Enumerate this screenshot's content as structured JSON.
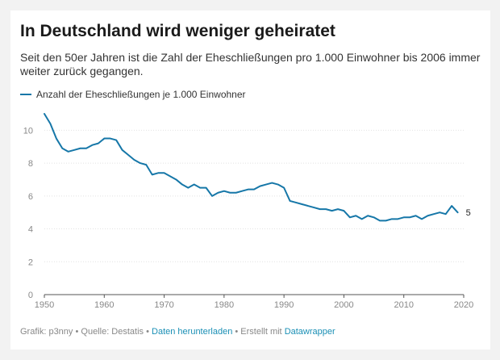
{
  "title": "In Deutschland wird weniger geheiratet",
  "subtitle": "Seit den 50er Jahren ist die Zahl der Eheschließungen pro 1.000 Einwohner bis 2006 immer weiter zurück gegangen.",
  "footer": {
    "credit": "Grafik: p3nny",
    "sep1": " • ",
    "source": "Quelle: Destatis",
    "sep2": " • ",
    "download_link": "Daten herunterladen",
    "sep3": " • ",
    "made_with": "Erstellt mit ",
    "tool_link": "Datawrapper"
  },
  "colors": {
    "line": "#1677a8",
    "background": "#f2f2f2",
    "link": "#1a8fb5"
  },
  "chart_data": {
    "type": "line",
    "title": "In Deutschland wird weniger geheiratet",
    "xlabel": "",
    "ylabel": "",
    "xlim": [
      1950,
      2020
    ],
    "ylim": [
      0,
      11
    ],
    "x_ticks": [
      "1950",
      "1960",
      "1970",
      "1980",
      "1990",
      "2000",
      "2010",
      "2020"
    ],
    "y_ticks": [
      "0",
      "2",
      "4",
      "6",
      "8",
      "10"
    ],
    "grid": "horizontal",
    "legend_position": "top-left",
    "end_label": "5",
    "series": [
      {
        "name": "Anzahl der Eheschließungen je 1.000 Einwohner",
        "x": [
          1950,
          1951,
          1952,
          1953,
          1954,
          1955,
          1956,
          1957,
          1958,
          1959,
          1960,
          1961,
          1962,
          1963,
          1964,
          1965,
          1966,
          1967,
          1968,
          1969,
          1970,
          1971,
          1972,
          1973,
          1974,
          1975,
          1976,
          1977,
          1978,
          1979,
          1980,
          1981,
          1982,
          1983,
          1984,
          1985,
          1986,
          1987,
          1988,
          1989,
          1990,
          1991,
          1992,
          1993,
          1994,
          1995,
          1996,
          1997,
          1998,
          1999,
          2000,
          2001,
          2002,
          2003,
          2004,
          2005,
          2006,
          2007,
          2008,
          2009,
          2010,
          2011,
          2012,
          2013,
          2014,
          2015,
          2016,
          2017,
          2018,
          2019
        ],
        "y": [
          11.0,
          10.4,
          9.5,
          8.9,
          8.7,
          8.8,
          8.9,
          8.9,
          9.1,
          9.2,
          9.5,
          9.5,
          9.4,
          8.8,
          8.5,
          8.2,
          8.0,
          7.9,
          7.3,
          7.4,
          7.4,
          7.2,
          7.0,
          6.7,
          6.5,
          6.7,
          6.5,
          6.5,
          6.0,
          6.2,
          6.3,
          6.2,
          6.2,
          6.3,
          6.4,
          6.4,
          6.6,
          6.7,
          6.8,
          6.7,
          6.5,
          5.7,
          5.6,
          5.5,
          5.4,
          5.3,
          5.2,
          5.2,
          5.1,
          5.2,
          5.1,
          4.7,
          4.8,
          4.6,
          4.8,
          4.7,
          4.5,
          4.5,
          4.6,
          4.6,
          4.7,
          4.7,
          4.8,
          4.6,
          4.8,
          4.9,
          5.0,
          4.9,
          5.4,
          5.0
        ]
      }
    ]
  }
}
